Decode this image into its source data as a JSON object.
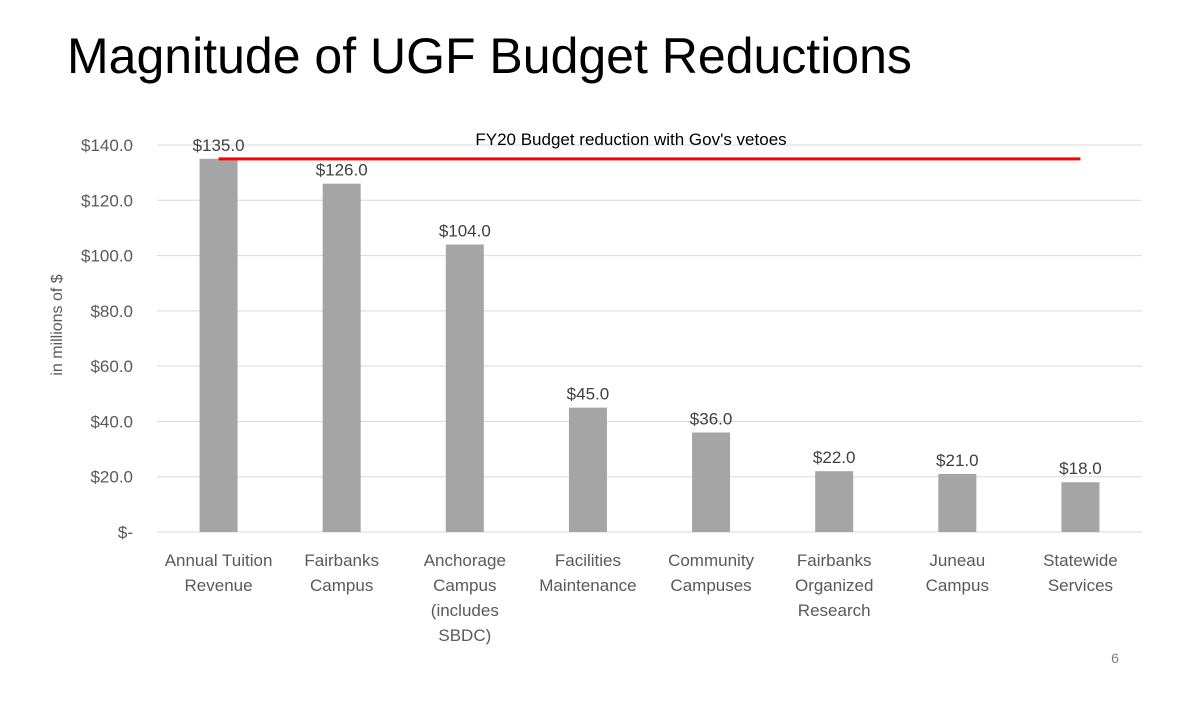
{
  "slide": {
    "title": "Magnitude of UGF Budget Reductions",
    "page_number": "6"
  },
  "chart_data": {
    "type": "bar",
    "ylabel": "in millions of $",
    "ylim": [
      0,
      140
    ],
    "yticks": [
      {
        "value": 0,
        "label": "$-"
      },
      {
        "value": 20,
        "label": "$20.0"
      },
      {
        "value": 40,
        "label": "$40.0"
      },
      {
        "value": 60,
        "label": "$60.0"
      },
      {
        "value": 80,
        "label": "$80.0"
      },
      {
        "value": 100,
        "label": "$100.0"
      },
      {
        "value": 120,
        "label": "$120.0"
      },
      {
        "value": 140,
        "label": "$140.0"
      }
    ],
    "grid": true,
    "categories": [
      [
        "Annual Tuition",
        "Revenue"
      ],
      [
        "Fairbanks",
        "Campus"
      ],
      [
        "Anchorage",
        "Campus",
        "(includes",
        "SBDC)"
      ],
      [
        "Facilities",
        "Maintenance"
      ],
      [
        "Community",
        "Campuses"
      ],
      [
        "Fairbanks",
        "Organized",
        "Research"
      ],
      [
        "Juneau",
        "Campus"
      ],
      [
        "Statewide",
        "Services"
      ]
    ],
    "values": [
      135,
      126,
      104,
      45,
      36,
      22,
      21,
      18
    ],
    "data_labels": [
      "$135.0",
      "$126.0",
      "$104.0",
      "$45.0",
      "$36.0",
      "$22.0",
      "$21.0",
      "$18.0"
    ],
    "reference_line": {
      "value": 135,
      "label": "FY20 Budget reduction with Gov's vetoes"
    },
    "colors": {
      "bar": "#a5a5a5",
      "reference_line": "#ff0000",
      "grid": "#d9d9d9",
      "tick_text": "#595959"
    }
  }
}
